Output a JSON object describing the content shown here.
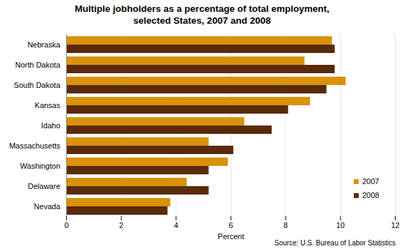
{
  "chart_data": {
    "type": "bar",
    "orientation": "horizontal",
    "title": "Multiple jobholders as a percentage of total employment, selected States, 2007 and 2008",
    "x_label": "Percent",
    "annotations": [
      "Source:  U.S. Bureau of Labor Statistics"
    ],
    "categories": [
      "Nebraska",
      "North Dakota",
      "South Dakota",
      "Kansas",
      "Idaho",
      "Massachusetts",
      "Washington",
      "Delaware",
      "Nevada"
    ],
    "series": [
      {
        "name": "2007",
        "color": "#d9920a",
        "values": [
          9.7,
          8.7,
          10.2,
          8.9,
          6.5,
          5.2,
          5.9,
          4.4,
          3.8
        ]
      },
      {
        "name": "2008",
        "color": "#5a2a0c",
        "values": [
          9.8,
          9.8,
          9.5,
          8.1,
          7.5,
          6.1,
          5.2,
          5.2,
          3.7
        ]
      }
    ],
    "xlim": [
      0,
      12
    ],
    "xticks": [
      0,
      2,
      4,
      6,
      8,
      10,
      12
    ],
    "grid": true,
    "legend": "right"
  }
}
